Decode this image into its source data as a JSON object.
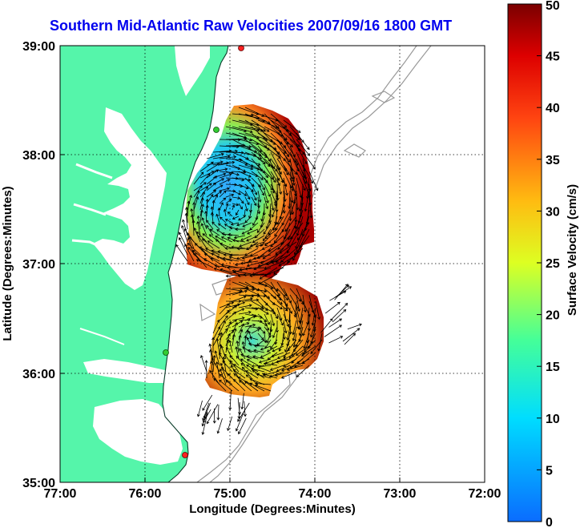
{
  "title": "Southern Mid-Atlantic Raw Velocities 2007/09/16 1800 GMT",
  "map": {
    "xlabel": "Longitude (Degrees:Minutes)",
    "ylabel": "Latitude (Degrees:Minutes)",
    "lon_range": [
      -77,
      -72
    ],
    "lat_range": [
      35,
      39
    ],
    "x_ticks": [
      "77:00",
      "76:00",
      "75:00",
      "74:00",
      "73:00",
      "72:00"
    ],
    "y_ticks": [
      "39:00",
      "38:00",
      "37:00",
      "36:00",
      "35:00"
    ],
    "grid": "dotted",
    "land_color": "#55f5aa",
    "contour_color": "#999999",
    "stations": [
      {
        "lon": -74.87,
        "lat": 39.0,
        "color": "#ff2020"
      },
      {
        "lon": -75.15,
        "lat": 38.23,
        "color": "#33cc33"
      },
      {
        "lon": -75.73,
        "lat": 36.19,
        "color": "#33cc33"
      },
      {
        "lon": -75.52,
        "lat": 35.25,
        "color": "#ff2020"
      }
    ]
  },
  "colorbar": {
    "label": "Surface Velocity (cm/s)",
    "ticks": [
      "0",
      "5",
      "10",
      "15",
      "20",
      "25",
      "30",
      "35",
      "40",
      "45",
      "50"
    ],
    "min": 0,
    "max": 50
  }
}
